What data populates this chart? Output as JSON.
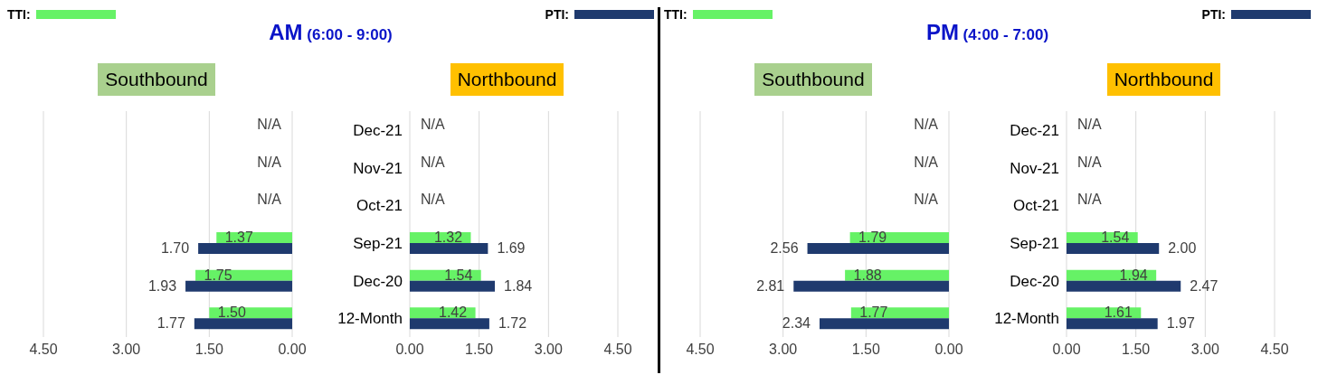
{
  "chart_data": [
    {
      "type": "bar",
      "orientation": "horizontal",
      "title": "AM (6:00 - 9:00)",
      "subtitle": "Southbound",
      "legend": "top left",
      "grid": "x",
      "tick_labels": "x",
      "categories": [
        null,
        null,
        null,
        null,
        null,
        null
      ],
      "xlim": [
        4.5,
        0
      ],
      "xticks": [
        {
          "value": 4.5,
          "label": "4.50"
        },
        {
          "value": 3,
          "label": "3.00"
        },
        {
          "value": 1.5,
          "label": "1.50"
        },
        {
          "value": 0,
          "label": "0.00"
        }
      ],
      "series": [
        {
          "name": "TTI:",
          "color": "#66f266",
          "values": [
            null,
            null,
            null,
            1.37,
            1.75,
            1.5
          ],
          "value_labels": [
            "N/A",
            "N/A",
            "N/A",
            "1.37",
            "1.75",
            "1.50"
          ]
        },
        {
          "color": "#1f3a6e",
          "values": [
            null,
            null,
            null,
            1.7,
            1.93,
            1.77
          ],
          "value_labels": [
            null,
            null,
            null,
            "1.70",
            "1.93",
            "1.77"
          ]
        }
      ]
    },
    {
      "type": "bar",
      "orientation": "horizontal",
      "subtitle": "Northbound",
      "legend": "top right",
      "grid": "x",
      "categories": [
        "Dec-21",
        "Nov-21",
        "Oct-21",
        "Sep-21",
        "Dec-20",
        "12-Month"
      ],
      "xlim": [
        0,
        4.5
      ],
      "xticks": [
        {
          "value": 0,
          "label": "0.00"
        },
        {
          "value": 1.5,
          "label": "1.50"
        },
        {
          "value": 3,
          "label": "3.00"
        },
        {
          "value": 4.5,
          "label": "4.50"
        }
      ],
      "series": [
        {
          "color": "#66f266",
          "values": [
            null,
            null,
            null,
            1.32,
            1.54,
            1.42
          ],
          "value_labels": [
            "N/A",
            "N/A",
            "N/A",
            "1.32",
            "1.54",
            "1.42"
          ]
        },
        {
          "name": "PTI:",
          "color": "#1f3a6e",
          "values": [
            null,
            null,
            null,
            1.69,
            1.84,
            1.72
          ],
          "value_labels": [
            null,
            null,
            null,
            "1.69",
            "1.84",
            "1.72"
          ]
        }
      ]
    },
    {
      "type": "bar",
      "orientation": "horizontal",
      "title": "PM (4:00 - 7:00)",
      "subtitle": "Southbound",
      "legend": "top left",
      "grid": "x",
      "tick_labels": "x",
      "categories": [
        null,
        null,
        null,
        null,
        null,
        null
      ],
      "xlim": [
        4.5,
        0
      ],
      "xticks": [
        {
          "value": 4.5,
          "label": "4.50"
        },
        {
          "value": 3,
          "label": "3.00"
        },
        {
          "value": 1.5,
          "label": "1.50"
        },
        {
          "value": 0,
          "label": "0.00"
        }
      ],
      "series": [
        {
          "name": "TTI:",
          "color": "#66f266",
          "values": [
            null,
            null,
            null,
            1.79,
            1.88,
            1.77
          ],
          "value_labels": [
            "N/A",
            "N/A",
            "N/A",
            "1.79",
            "1.88",
            "1.77"
          ]
        },
        {
          "color": "#1f3a6e",
          "values": [
            null,
            null,
            null,
            2.56,
            2.81,
            2.34
          ],
          "value_labels": [
            null,
            null,
            null,
            "2.56",
            "2.81",
            "2.34"
          ]
        }
      ]
    },
    {
      "type": "bar",
      "orientation": "horizontal",
      "subtitle": "Northbound",
      "legend": "top right",
      "grid": "x",
      "categories": [
        "Dec-21",
        "Nov-21",
        "Oct-21",
        "Sep-21",
        "Dec-20",
        "12-Month"
      ],
      "xlim": [
        0,
        4.5
      ],
      "xticks": [
        {
          "value": 0,
          "label": "0.00"
        },
        {
          "value": 1.5,
          "label": "1.50"
        },
        {
          "value": 3,
          "label": "3.00"
        },
        {
          "value": 4.5,
          "label": "4.50"
        }
      ],
      "series": [
        {
          "color": "#66f266",
          "values": [
            null,
            null,
            null,
            1.54,
            1.94,
            1.61
          ],
          "value_labels": [
            "N/A",
            "N/A",
            "N/A",
            "1.54",
            "1.94",
            "1.61"
          ]
        },
        {
          "name": "PTI:",
          "color": "#1f3a6e",
          "values": [
            null,
            null,
            null,
            2.0,
            2.47,
            1.97
          ],
          "value_labels": [
            null,
            null,
            null,
            "2.00",
            "2.47",
            "1.97"
          ]
        }
      ]
    }
  ]
}
